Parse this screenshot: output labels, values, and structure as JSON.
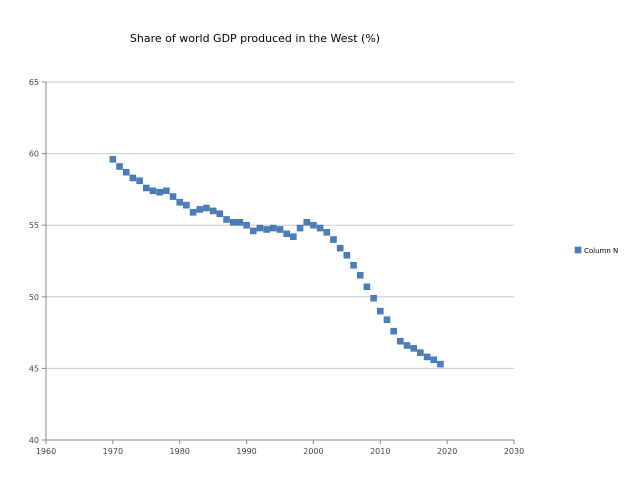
{
  "chart_data": {
    "type": "scatter",
    "title": "Share of world GDP produced in the West (%)",
    "xlabel": "",
    "ylabel": "",
    "xlim": [
      1960,
      2030
    ],
    "ylim": [
      40,
      65
    ],
    "xticks": [
      1960,
      1970,
      1980,
      1990,
      2000,
      2010,
      2020,
      2030
    ],
    "yticks": [
      40,
      45,
      50,
      55,
      60,
      65
    ],
    "grid": "horizontal",
    "legend_position": "right",
    "marker_color": "#4a7ebb",
    "series": [
      {
        "name": "Column N",
        "x": [
          1970,
          1971,
          1972,
          1973,
          1974,
          1975,
          1976,
          1977,
          1978,
          1979,
          1980,
          1981,
          1982,
          1983,
          1984,
          1985,
          1986,
          1987,
          1988,
          1989,
          1990,
          1991,
          1992,
          1993,
          1994,
          1995,
          1996,
          1997,
          1998,
          1999,
          2000,
          2001,
          2002,
          2003,
          2004,
          2005,
          2006,
          2007,
          2008,
          2009,
          2010,
          2011,
          2012,
          2013,
          2014,
          2015,
          2016,
          2017,
          2018,
          2019
        ],
        "y": [
          59.6,
          59.1,
          58.7,
          58.3,
          58.1,
          57.6,
          57.4,
          57.3,
          57.4,
          57.0,
          56.6,
          56.4,
          55.9,
          56.1,
          56.2,
          56.0,
          55.8,
          55.4,
          55.2,
          55.2,
          55.0,
          54.6,
          54.8,
          54.7,
          54.8,
          54.7,
          54.4,
          54.2,
          54.8,
          55.2,
          55.0,
          54.8,
          54.5,
          54.0,
          53.4,
          52.9,
          52.2,
          51.5,
          50.7,
          49.9,
          49.0,
          48.4,
          47.6,
          46.9,
          46.6,
          46.4,
          46.1,
          45.8,
          45.6,
          45.3
        ]
      }
    ]
  }
}
